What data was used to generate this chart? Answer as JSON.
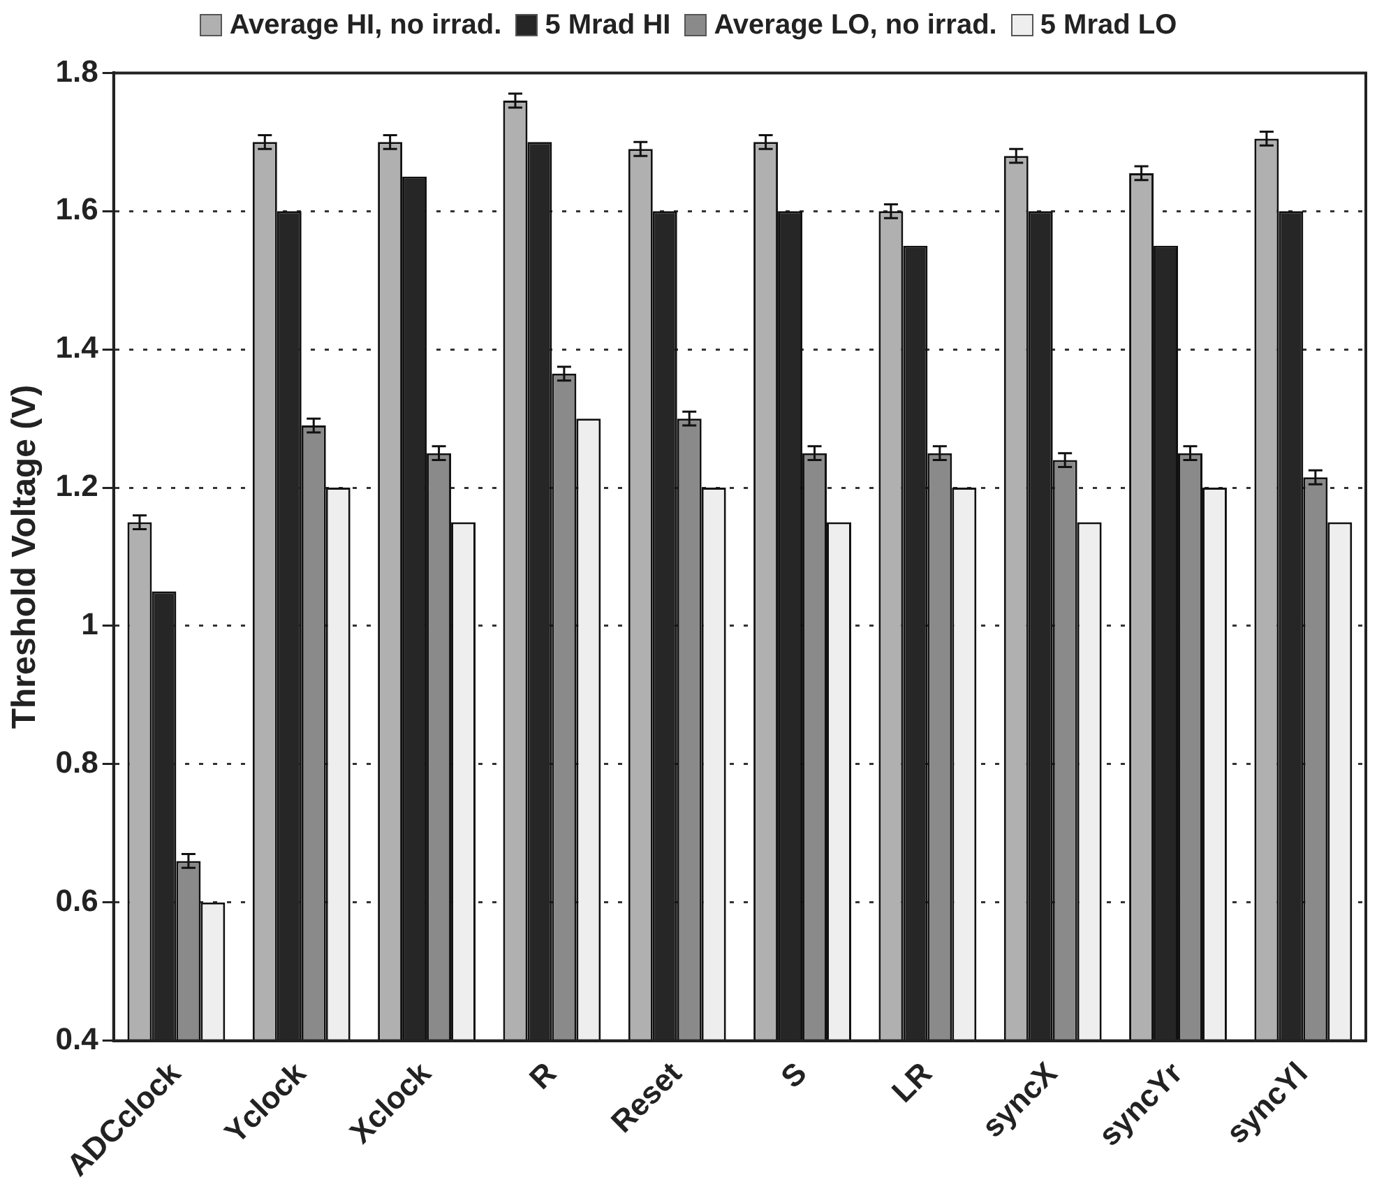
{
  "chart_data": {
    "type": "bar",
    "ylabel": "Threshold Voltage (V)",
    "categories": [
      "ADCclock",
      "Yclock",
      "Xclock",
      "R",
      "Reset",
      "S",
      "LR",
      "syncX",
      "syncYr",
      "syncYl"
    ],
    "series": [
      {
        "name": "Average HI, no irrad.",
        "color": "#b0b0b0",
        "values": [
          1.15,
          1.7,
          1.7,
          1.76,
          1.69,
          1.7,
          1.6,
          1.68,
          1.655,
          1.705
        ],
        "errors": [
          0.01,
          0.01,
          0.01,
          0.01,
          0.01,
          0.01,
          0.01,
          0.01,
          0.01,
          0.01
        ]
      },
      {
        "name": "5 Mrad HI",
        "color": "#262626",
        "values": [
          1.05,
          1.6,
          1.65,
          1.7,
          1.6,
          1.6,
          1.55,
          1.6,
          1.55,
          1.6
        ]
      },
      {
        "name": "Average LO, no irrad.",
        "color": "#8a8a8a",
        "values": [
          0.66,
          1.29,
          1.25,
          1.365,
          1.3,
          1.25,
          1.25,
          1.24,
          1.25,
          1.215
        ],
        "errors": [
          0.01,
          0.01,
          0.01,
          0.01,
          0.01,
          0.01,
          0.01,
          0.01,
          0.01,
          0.01
        ]
      },
      {
        "name": "5 Mrad LO",
        "color": "#eeeeee",
        "values": [
          0.6,
          1.2,
          1.15,
          1.3,
          1.2,
          1.15,
          1.2,
          1.15,
          1.2,
          1.15
        ]
      }
    ],
    "ylim": [
      0.4,
      1.8
    ],
    "yticks": [
      0.4,
      0.6,
      0.8,
      {
        "value": 1.0,
        "label": "1"
      },
      1.2,
      1.4,
      1.6,
      1.8
    ],
    "grid": "y",
    "legend": "top"
  }
}
